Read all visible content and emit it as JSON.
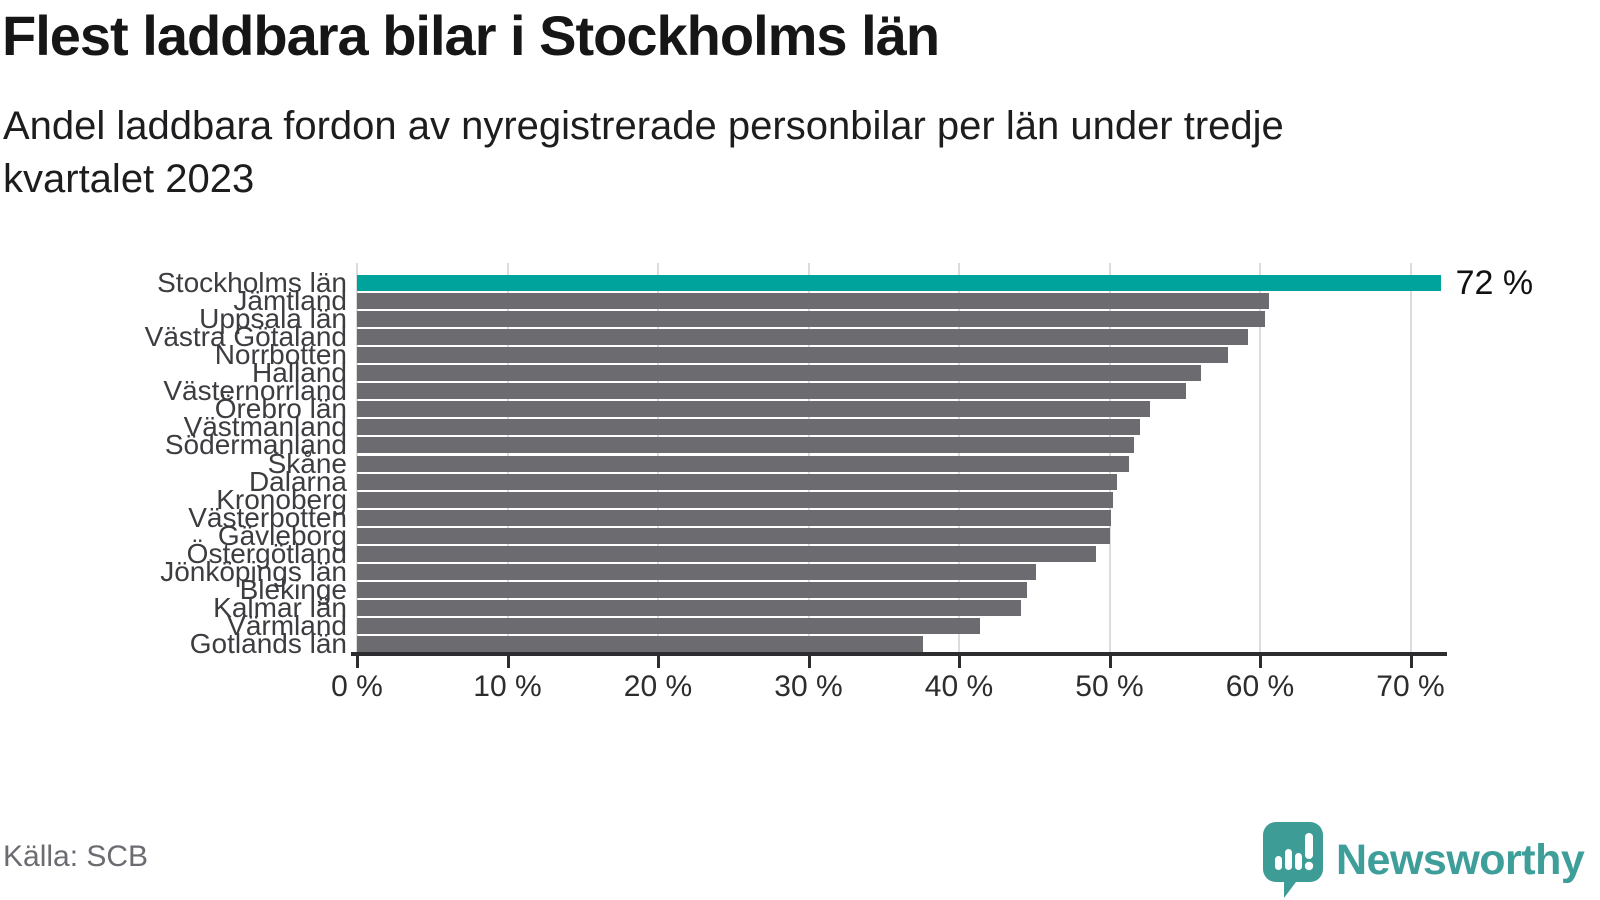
{
  "chart_data": {
    "type": "bar",
    "orientation": "horizontal",
    "title": "Flest laddbara bilar i Stockholms län",
    "subtitle_line1": "Andel laddbara fordon av nyregistrerade personbilar per län under tredje",
    "subtitle_line2": "kvartalet 2023",
    "categories": [
      "Stockholms län",
      "Jämtland",
      "Uppsala län",
      "Västra Götaland",
      "Norrbotten",
      "Halland",
      "Västernorrland",
      "Örebro län",
      "Västmanland",
      "Södermanland",
      "Skåne",
      "Dalarna",
      "Kronoberg",
      "Västerbotten",
      "Gävleborg",
      "Östergötland",
      "Jönköpings län",
      "Blekinge",
      "Kalmar län",
      "Värmland",
      "Gotlands län"
    ],
    "values": [
      72,
      60.6,
      60.3,
      59.2,
      57.9,
      56.1,
      55.1,
      52.7,
      52.0,
      51.6,
      51.3,
      50.5,
      50.2,
      50.1,
      50.0,
      49.1,
      45.1,
      44.5,
      44.1,
      41.4,
      37.6
    ],
    "highlight_index": 0,
    "annotation_text": "72 %",
    "x_tick_labels": [
      "0 %",
      "10 %",
      "20 %",
      "30 %",
      "40 %",
      "50 %",
      "60 %",
      "70 %"
    ],
    "x_tick_values": [
      0,
      10,
      20,
      30,
      40,
      50,
      60,
      70
    ],
    "xlim": [
      0,
      72
    ],
    "grid": true,
    "legend": "none",
    "colors": {
      "highlight_bar": "#00a39b",
      "bar": "#6b6b70",
      "gridline": "#dcdcdc",
      "axis": "#2d2d2f"
    }
  },
  "footer": {
    "source": "Källa: SCB",
    "brand": "Newsworthy"
  }
}
